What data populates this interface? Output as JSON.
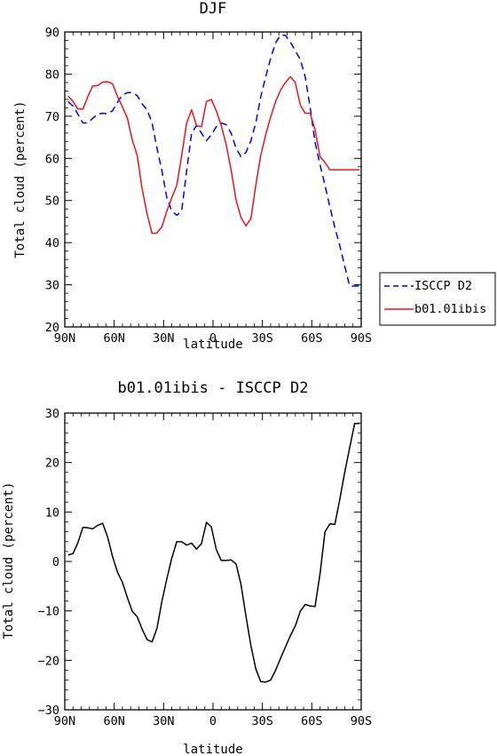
{
  "chart_data": [
    {
      "type": "line",
      "title": "DJF",
      "xlabel": "latitude",
      "ylabel": "Total cloud (percent)",
      "xlim": [
        90,
        -90
      ],
      "ylim": [
        20,
        90
      ],
      "xticks": [
        90,
        60,
        30,
        0,
        -30,
        -60,
        -90
      ],
      "xtick_labels": [
        "90N",
        "60N",
        "30N",
        "0",
        "30S",
        "60S",
        "90S"
      ],
      "yticks": [
        20,
        30,
        40,
        50,
        60,
        70,
        80,
        90
      ],
      "ytick_labels": [
        "20",
        "30",
        "40",
        "50",
        "60",
        "70",
        "80",
        "90"
      ],
      "legend_position": "right, outside",
      "series": [
        {
          "name": "ISCCP D2",
          "color": "#0000ee",
          "dash": "dashed",
          "x": [
            88,
            85,
            82,
            79,
            76,
            73,
            70,
            67,
            64,
            61,
            58,
            55,
            52,
            49,
            46,
            43,
            40,
            37,
            34,
            31,
            28,
            25,
            22,
            19,
            16,
            13,
            10,
            7,
            4,
            1,
            -2,
            -5,
            -8,
            -11,
            -14,
            -17,
            -20,
            -23,
            -26,
            -29,
            -32,
            -35,
            -38,
            -41,
            -44,
            -47,
            -50,
            -53,
            -56,
            -59,
            -62,
            -65,
            -68,
            -71,
            -74,
            -77,
            -80,
            -83,
            -86,
            -89
          ],
          "y": [
            73.5,
            72.4,
            70.5,
            68.4,
            68.4,
            69.5,
            70.5,
            70.7,
            70.6,
            71.3,
            73.3,
            75.0,
            75.6,
            75.6,
            74.9,
            72.9,
            71.5,
            68.5,
            62.4,
            57.0,
            50.7,
            47.5,
            46.5,
            47.5,
            57.0,
            66.0,
            67.8,
            66.0,
            64.2,
            65.6,
            67.5,
            68.4,
            68.0,
            66.0,
            62.4,
            60.4,
            61.4,
            64.2,
            68.4,
            74.6,
            79.4,
            83.7,
            87.4,
            89.3,
            89.2,
            87.6,
            85.5,
            83.5,
            79.4,
            72.0,
            63.8,
            58.5,
            53.6,
            48.5,
            43.6,
            39.3,
            34.4,
            29.7,
            29.7,
            29.7
          ]
        },
        {
          "name": "b01.01ibis",
          "color": "#e8141c",
          "dash": "solid",
          "x": [
            88,
            85,
            82,
            79,
            76,
            73,
            70,
            67,
            64,
            61,
            58,
            55,
            52,
            49,
            46,
            43,
            40,
            37,
            34,
            31,
            28,
            25,
            22,
            19,
            16,
            13,
            10,
            7,
            4,
            1,
            -2,
            -5,
            -8,
            -11,
            -14,
            -17,
            -20,
            -23,
            -26,
            -29,
            -32,
            -35,
            -38,
            -41,
            -44,
            -47,
            -50,
            -53,
            -56,
            -59,
            -62,
            -65,
            -68,
            -71,
            -74,
            -77,
            -80,
            -83,
            -86,
            -89
          ],
          "y": [
            74.8,
            73.5,
            71.7,
            71.7,
            74.7,
            77.2,
            77.3,
            78.1,
            78.2,
            77.7,
            74.7,
            72.2,
            69.6,
            64.3,
            60.7,
            52.7,
            46.8,
            42.2,
            42.3,
            43.8,
            47.5,
            50.7,
            53.6,
            60.7,
            68.4,
            71.5,
            67.8,
            67.5,
            73.5,
            74.0,
            71.3,
            67.8,
            63.3,
            57.3,
            50.1,
            46.0,
            44.0,
            45.7,
            53.6,
            60.7,
            65.6,
            69.8,
            73.5,
            76.2,
            78.0,
            79.4,
            78.0,
            72.7,
            70.7,
            70.7,
            66.8,
            60.4,
            59.0,
            57.3,
            57.3,
            57.3,
            57.3,
            57.3,
            57.3,
            57.3
          ]
        }
      ]
    },
    {
      "type": "line",
      "title": "b01.01ibis - ISCCP D2",
      "xlabel": "latitude",
      "ylabel": "Total cloud (percent)",
      "xlim": [
        90,
        -90
      ],
      "ylim": [
        -30,
        30
      ],
      "xticks": [
        90,
        60,
        30,
        0,
        -30,
        -60,
        -90
      ],
      "xtick_labels": [
        "90N",
        "60N",
        "30N",
        "0",
        "30S",
        "60S",
        "90S"
      ],
      "yticks": [
        -30,
        -20,
        -10,
        0,
        10,
        20,
        30
      ],
      "ytick_labels": [
        "−30",
        "−20",
        "−10",
        "0",
        "10",
        "20",
        "30"
      ],
      "series": [
        {
          "color": "#000000",
          "dash": "solid",
          "x": [
            88,
            85,
            82,
            79,
            76,
            73,
            70,
            67,
            64,
            61,
            58,
            55,
            52,
            49,
            46,
            43,
            40,
            37,
            34,
            31,
            28,
            25,
            22,
            19,
            16,
            13,
            10,
            7,
            4,
            1,
            -2,
            -5,
            -8,
            -11,
            -14,
            -17,
            -20,
            -23,
            -26,
            -29,
            -32,
            -35,
            -38,
            -41,
            -44,
            -47,
            -50,
            -53,
            -56,
            -59,
            -62,
            -65,
            -68,
            -71,
            -74,
            -77,
            -80,
            -83,
            -86,
            -89
          ],
          "y": [
            1.3,
            1.6,
            3.8,
            6.9,
            6.8,
            6.6,
            7.3,
            7.7,
            5.0,
            1.0,
            -2.2,
            -4.2,
            -7.3,
            -10.1,
            -11.2,
            -13.7,
            -15.8,
            -16.3,
            -13.5,
            -8.0,
            -3.5,
            0.7,
            4.0,
            4.0,
            3.3,
            3.7,
            2.5,
            3.6,
            7.9,
            7.0,
            2.4,
            0.2,
            0.2,
            0.3,
            -0.5,
            -4.6,
            -11.0,
            -17.0,
            -21.7,
            -24.3,
            -24.4,
            -24.0,
            -22.0,
            -19.6,
            -17.3,
            -15.0,
            -13.0,
            -10.1,
            -8.7,
            -9.0,
            -9.1,
            -2.5,
            6.0,
            7.6,
            7.5,
            12.6,
            18.0,
            23.0,
            27.9,
            27.9
          ]
        }
      ]
    }
  ]
}
